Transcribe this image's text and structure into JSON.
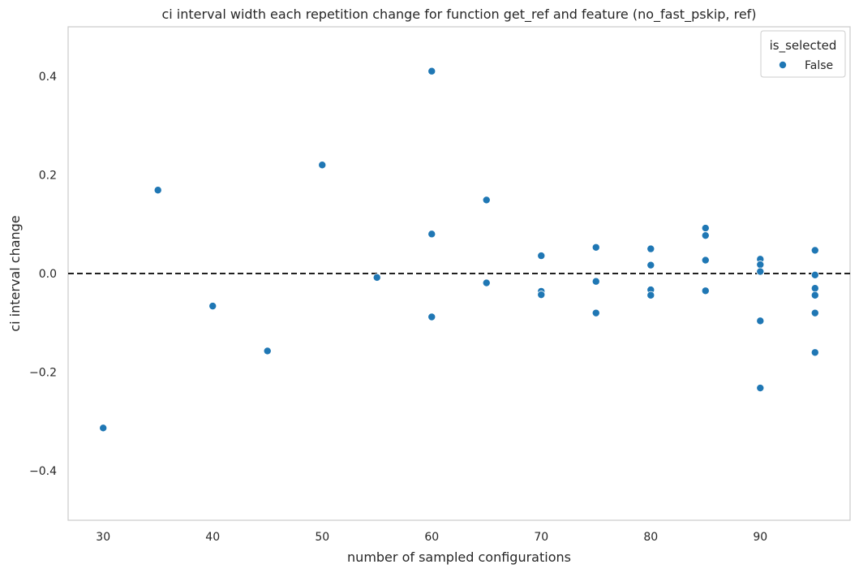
{
  "chart_data": {
    "type": "scatter",
    "title": "ci interval width each repetition change for function get_ref and feature (no_fast_pskip, ref)",
    "xlabel": "number of sampled configurations",
    "ylabel": "ci interval change",
    "xlim": [
      26.8,
      98.2
    ],
    "ylim": [
      -0.5,
      0.5
    ],
    "xticks": [
      30,
      40,
      50,
      60,
      70,
      80,
      90
    ],
    "yticks": [
      -0.4,
      -0.2,
      0.0,
      0.2,
      0.4
    ],
    "ytick_labels": [
      "−0.4",
      "−0.2",
      "0.0",
      "0.2",
      "0.4"
    ],
    "grid": false,
    "reference_line": {
      "y": 0,
      "style": "dashed",
      "color": "#000000"
    },
    "legend": {
      "title": "is_selected",
      "placement": "top-right"
    },
    "series": [
      {
        "name": "False",
        "color": "#1f77b4",
        "points": [
          {
            "x": 30,
            "y": -0.313
          },
          {
            "x": 35,
            "y": 0.169
          },
          {
            "x": 40,
            "y": -0.066
          },
          {
            "x": 45,
            "y": -0.157
          },
          {
            "x": 50,
            "y": 0.22
          },
          {
            "x": 55,
            "y": -0.008
          },
          {
            "x": 60,
            "y": 0.41
          },
          {
            "x": 60,
            "y": 0.08
          },
          {
            "x": 60,
            "y": -0.088
          },
          {
            "x": 65,
            "y": 0.149
          },
          {
            "x": 65,
            "y": -0.019
          },
          {
            "x": 70,
            "y": 0.036
          },
          {
            "x": 70,
            "y": -0.036
          },
          {
            "x": 70,
            "y": -0.043
          },
          {
            "x": 75,
            "y": 0.053
          },
          {
            "x": 75,
            "y": -0.016
          },
          {
            "x": 75,
            "y": -0.08
          },
          {
            "x": 80,
            "y": 0.05
          },
          {
            "x": 80,
            "y": 0.017
          },
          {
            "x": 80,
            "y": -0.033
          },
          {
            "x": 80,
            "y": -0.044
          },
          {
            "x": 85,
            "y": 0.092
          },
          {
            "x": 85,
            "y": 0.077
          },
          {
            "x": 85,
            "y": 0.027
          },
          {
            "x": 85,
            "y": -0.035
          },
          {
            "x": 90,
            "y": 0.029
          },
          {
            "x": 90,
            "y": 0.018
          },
          {
            "x": 90,
            "y": 0.004
          },
          {
            "x": 90,
            "y": -0.096
          },
          {
            "x": 90,
            "y": -0.232
          },
          {
            "x": 95,
            "y": 0.047
          },
          {
            "x": 95,
            "y": -0.003
          },
          {
            "x": 95,
            "y": -0.03
          },
          {
            "x": 95,
            "y": -0.044
          },
          {
            "x": 95,
            "y": -0.08
          },
          {
            "x": 95,
            "y": -0.16
          }
        ]
      }
    ]
  }
}
